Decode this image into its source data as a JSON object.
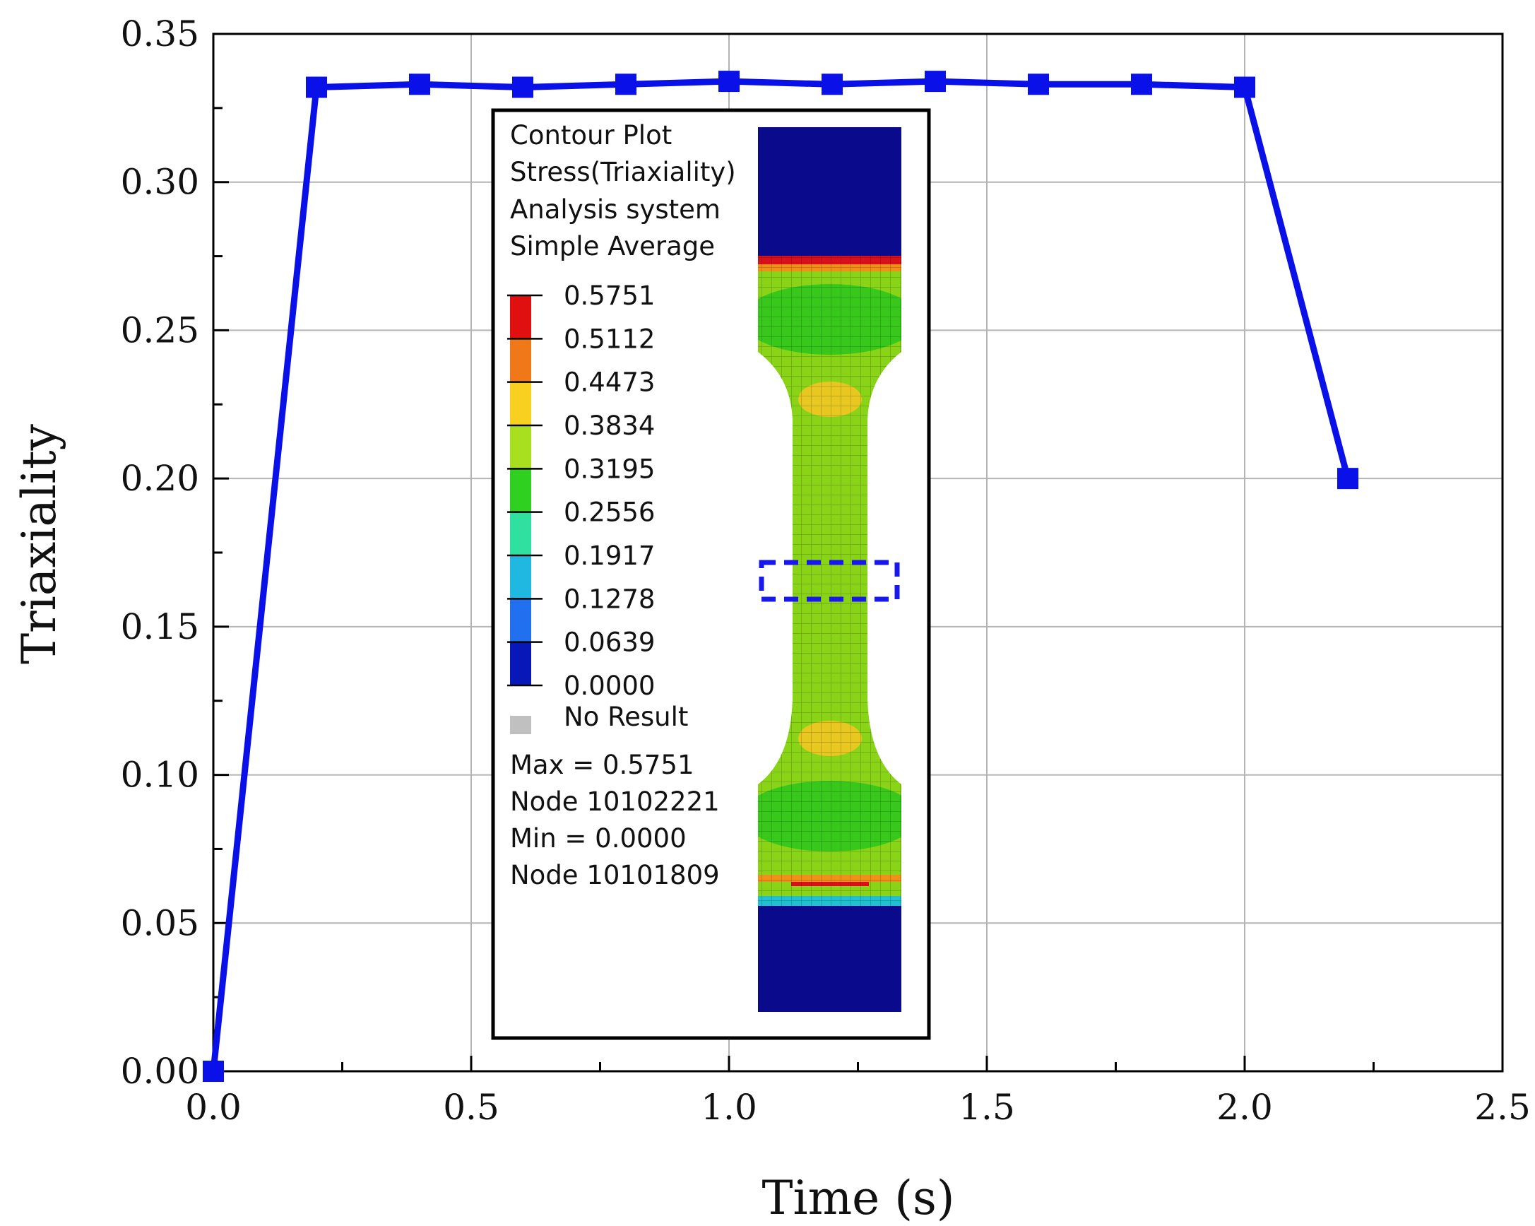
{
  "chart_data": {
    "type": "line",
    "xlabel": "Time (s)",
    "ylabel": "Triaxiality",
    "xlim": [
      0.0,
      2.5
    ],
    "ylim": [
      0.0,
      0.35
    ],
    "x_ticks": [
      "0.0",
      "0.5",
      "1.0",
      "1.5",
      "2.0",
      "2.5"
    ],
    "y_ticks": [
      "0.00",
      "0.05",
      "0.10",
      "0.15",
      "0.20",
      "0.25",
      "0.30",
      "0.35"
    ],
    "x_tick_values": [
      0.0,
      0.5,
      1.0,
      1.5,
      2.0,
      2.5
    ],
    "y_tick_values": [
      0.0,
      0.05,
      0.1,
      0.15,
      0.2,
      0.25,
      0.3,
      0.35
    ],
    "grid": true,
    "series": [
      {
        "name": "Triaxiality",
        "color": "#0a10e8",
        "marker": "square",
        "x": [
          0.0,
          0.2,
          0.4,
          0.6,
          0.8,
          1.0,
          1.2,
          1.4,
          1.6,
          1.8,
          2.0,
          2.2
        ],
        "values": [
          0.0,
          0.332,
          0.333,
          0.332,
          0.333,
          0.334,
          0.333,
          0.334,
          0.333,
          0.333,
          0.332,
          0.2
        ]
      }
    ]
  },
  "inset": {
    "header_lines": [
      "Contour Plot",
      "Stress(Triaxiality)",
      "Analysis system",
      "Simple Average"
    ],
    "legend_levels": [
      "0.5751",
      "0.5112",
      "0.4473",
      "0.3834",
      "0.3195",
      "0.2556",
      "0.1917",
      "0.1278",
      "0.0639",
      "0.0000"
    ],
    "band_colors": [
      "#e01010",
      "#f07818",
      "#f8d020",
      "#a8e020",
      "#30d020",
      "#30e0a0",
      "#20b8e0",
      "#2070f0",
      "#0818b8"
    ],
    "no_result_label": "No Result",
    "no_result_color": "#c0c0c0",
    "stats_lines": [
      "Max = 0.5751",
      "Node 10102221",
      "Min = 0.0000",
      "Node 10101809"
    ],
    "specimen_colors": {
      "grip": "#0a0a8c",
      "body": "#8ad418",
      "green_zone": "#38c81c",
      "hot": "#d8101a",
      "orange": "#f09018",
      "yellow": "#e8c820",
      "cyan": "#20c0d0",
      "highlight_box": "#1818ee"
    }
  }
}
